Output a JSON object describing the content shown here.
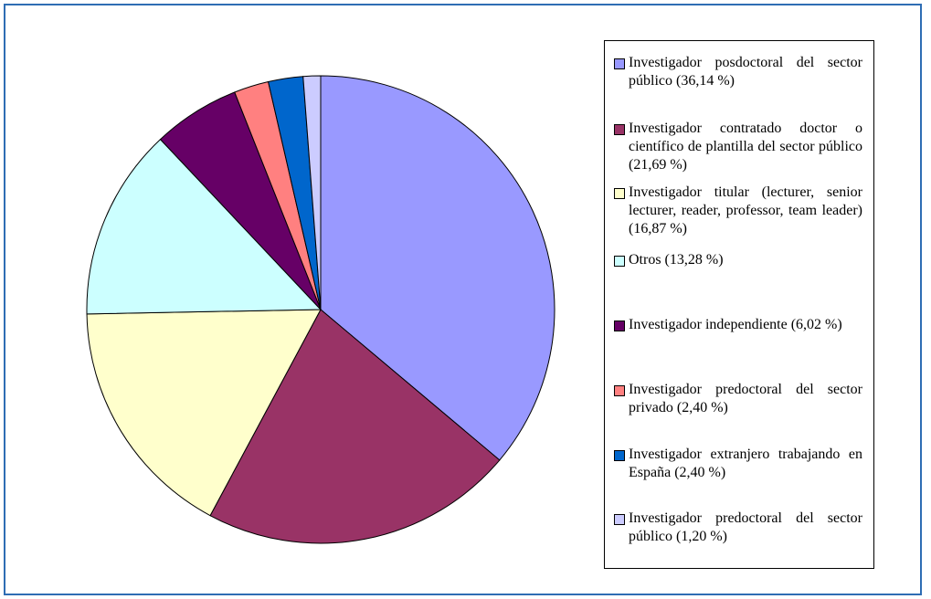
{
  "chart_data": {
    "type": "pie",
    "title": "",
    "legend_position": "right",
    "slices": [
      {
        "label": "Investigador posdoctoral del sector público (36,14 %)",
        "value": 36.14,
        "color": "#9999ff"
      },
      {
        "label": "Investigador contratado doctor o científico de plantilla del sector público (21,69 %)",
        "value": 21.69,
        "color": "#993366"
      },
      {
        "label": "Investigador titular (lecturer, senior lecturer, reader, professor, team leader) (16,87 %)",
        "value": 16.87,
        "color": "#ffffcc"
      },
      {
        "label": "Otros (13,28 %)",
        "value": 13.28,
        "color": "#ccffff"
      },
      {
        "label": "Investigador independiente (6,02 %)",
        "value": 6.02,
        "color": "#660066"
      },
      {
        "label": "Investigador predoctoral del sector privado (2,40 %)",
        "value": 2.4,
        "color": "#ff8080"
      },
      {
        "label": "Investigador extranjero trabajando en España (2,40 %)",
        "value": 2.4,
        "color": "#0066cc"
      },
      {
        "label": "Investigador predoctoral del sector público (1,20 %)",
        "value": 1.2,
        "color": "#ccccff"
      }
    ]
  }
}
